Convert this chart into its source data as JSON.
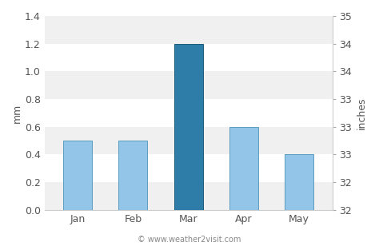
{
  "categories": [
    "Jan",
    "Feb",
    "Mar",
    "Apr",
    "May"
  ],
  "values": [
    0.5,
    0.5,
    1.2,
    0.6,
    0.4
  ],
  "bar_colors": [
    "#92c5e8",
    "#92c5e8",
    "#2e7da8",
    "#92c5e8",
    "#92c5e8"
  ],
  "bar_edge_colors": [
    "#5a9ec0",
    "#5a9ec0",
    "#1a5a7a",
    "#5a9ec0",
    "#5a9ec0"
  ],
  "ylim_left": [
    0.0,
    1.4
  ],
  "yticks_left": [
    0.0,
    0.2,
    0.4,
    0.6,
    0.8,
    1.0,
    1.2,
    1.4
  ],
  "ylabel_left": "mm",
  "yticks_right_labels": [
    "32",
    "32",
    "33",
    "33",
    "33",
    "34",
    "34",
    "35"
  ],
  "ylabel_right": "inches",
  "band_colors": [
    "#f0f0f0",
    "#ffffff"
  ],
  "figure_bg": "#ffffff",
  "copyright_text": "© www.weather2visit.com",
  "tick_label_fontsize": 9,
  "axis_label_fontsize": 9,
  "bar_linewidth": 0.7
}
